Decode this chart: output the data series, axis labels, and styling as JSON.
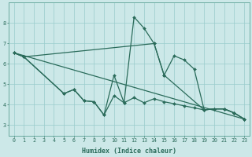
{
  "xlabel": "Humidex (Indice chaleur)",
  "bg_color": "#cce8e8",
  "grid_color": "#99cccc",
  "line_color": "#2a6b5a",
  "xlim": [
    -0.5,
    23.5
  ],
  "ylim": [
    2.5,
    9.0
  ],
  "yticks": [
    3,
    4,
    5,
    6,
    7,
    8
  ],
  "xticks": [
    0,
    1,
    2,
    3,
    4,
    5,
    6,
    7,
    8,
    9,
    10,
    11,
    12,
    13,
    14,
    15,
    16,
    17,
    18,
    19,
    20,
    21,
    22,
    23
  ],
  "line1_x": [
    0,
    1,
    14,
    15,
    19,
    20,
    21,
    22,
    23
  ],
  "line1_y": [
    6.55,
    6.35,
    7.0,
    5.45,
    3.75,
    3.8,
    3.8,
    3.6,
    3.3
  ],
  "line2_x": [
    0,
    1,
    5,
    6,
    7,
    8,
    9,
    10,
    11,
    12,
    13,
    14,
    15,
    16,
    17,
    18,
    19,
    20,
    21,
    22,
    23
  ],
  "line2_y": [
    6.55,
    6.35,
    4.55,
    4.75,
    4.2,
    4.15,
    3.5,
    5.45,
    4.1,
    8.3,
    7.75,
    7.0,
    5.45,
    6.4,
    6.2,
    5.75,
    3.75,
    3.8,
    3.8,
    3.6,
    3.3
  ],
  "line3_x": [
    0,
    1,
    5,
    6,
    7,
    8,
    9,
    10,
    11,
    12,
    13,
    14,
    15,
    16,
    17,
    18,
    19,
    20,
    21,
    22,
    23
  ],
  "line3_y": [
    6.55,
    6.35,
    4.55,
    4.75,
    4.2,
    4.15,
    3.5,
    4.45,
    4.1,
    4.35,
    4.1,
    4.3,
    4.15,
    4.05,
    3.95,
    3.85,
    3.75,
    3.8,
    3.8,
    3.6,
    3.3
  ],
  "line4_x": [
    0,
    23
  ],
  "line4_y": [
    6.55,
    3.3
  ],
  "marker_size": 2.0,
  "line_width": 0.9,
  "xlabel_fontsize": 6.0,
  "tick_fontsize": 4.8,
  "spine_color": "#6aaba0"
}
